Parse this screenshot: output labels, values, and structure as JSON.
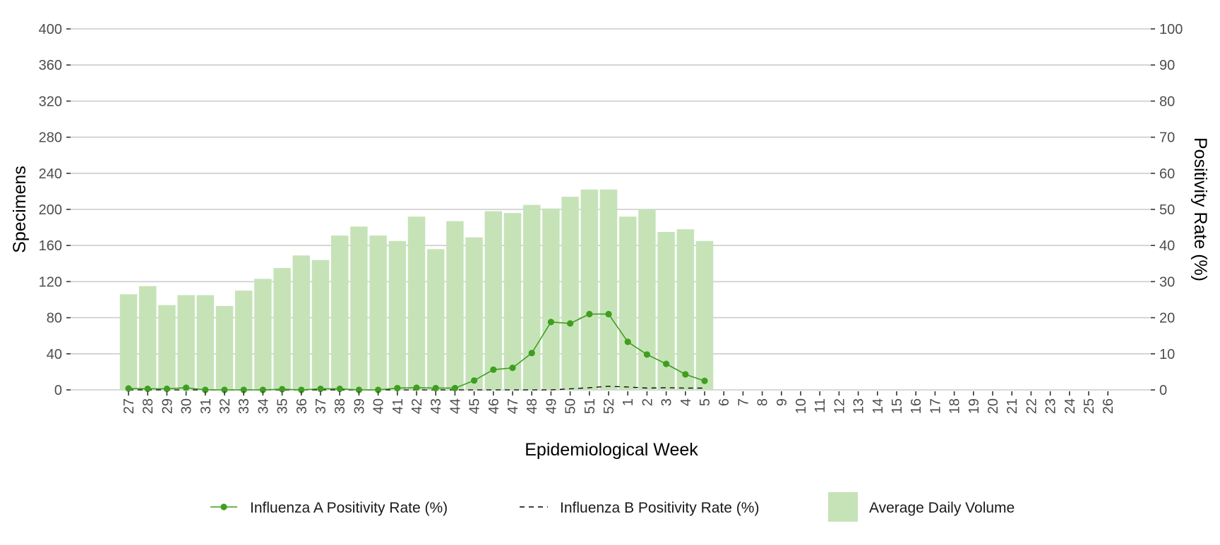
{
  "chart_data": {
    "type": "bar",
    "xlabel": "Epidemiological Week",
    "ylabel": "Specimens",
    "y2label": "Positivity Rate (%)",
    "ylim": [
      0,
      400
    ],
    "y2lim": [
      0,
      100
    ],
    "yticks": [
      0,
      40,
      80,
      120,
      160,
      200,
      240,
      280,
      320,
      360,
      400
    ],
    "y2ticks": [
      0,
      10,
      20,
      30,
      40,
      50,
      60,
      70,
      80,
      90,
      100
    ],
    "grid": true,
    "legend_position": "bottom",
    "categories": [
      "27",
      "28",
      "29",
      "30",
      "31",
      "32",
      "33",
      "34",
      "35",
      "36",
      "37",
      "38",
      "39",
      "40",
      "41",
      "42",
      "43",
      "44",
      "45",
      "46",
      "47",
      "48",
      "49",
      "50",
      "51",
      "52",
      "1",
      "2",
      "3",
      "4",
      "5",
      "6",
      "7",
      "8",
      "9",
      "10",
      "11",
      "12",
      "13",
      "14",
      "15",
      "16",
      "17",
      "18",
      "19",
      "20",
      "21",
      "22",
      "23",
      "24",
      "25",
      "26"
    ],
    "series": [
      {
        "name": "Average Daily Volume",
        "type": "bar",
        "axis": "left",
        "color": "#c6e3b8",
        "values": [
          106,
          115,
          94,
          105,
          105,
          93,
          110,
          123,
          135,
          149,
          144,
          171,
          181,
          171,
          165,
          192,
          156,
          187,
          169,
          198,
          196,
          205,
          201,
          214,
          222,
          222,
          192,
          200,
          175,
          178,
          165,
          null,
          null,
          null,
          null,
          null,
          null,
          null,
          null,
          null,
          null,
          null,
          null,
          null,
          null,
          null,
          null,
          null,
          null,
          null,
          null,
          null
        ]
      },
      {
        "name": "Influenza A Positivity Rate (%)",
        "type": "line",
        "axis": "right",
        "color": "#3f9e1f",
        "values": [
          0.4,
          0.3,
          0.3,
          0.6,
          0.0,
          0.0,
          0.0,
          0.0,
          0.2,
          0.0,
          0.3,
          0.3,
          0.0,
          0.0,
          0.5,
          0.6,
          0.5,
          0.5,
          2.6,
          5.6,
          6.1,
          10.2,
          18.8,
          18.4,
          21.0,
          21.0,
          13.3,
          9.8,
          7.2,
          4.3,
          2.5,
          null,
          null,
          null,
          null,
          null,
          null,
          null,
          null,
          null,
          null,
          null,
          null,
          null,
          null,
          null,
          null,
          null,
          null,
          null,
          null,
          null
        ]
      },
      {
        "name": "Influenza B Positivity Rate (%)",
        "type": "line",
        "dash": true,
        "axis": "right",
        "color": "#000000",
        "values": [
          0,
          0,
          0,
          0,
          0,
          0,
          0,
          0,
          0,
          0,
          0,
          0,
          0,
          0,
          0,
          0,
          0,
          0,
          0,
          0,
          0,
          0,
          0,
          0.3,
          0.6,
          1.0,
          0.8,
          0.5,
          0.6,
          0.5,
          0.5,
          null,
          null,
          null,
          null,
          null,
          null,
          null,
          null,
          null,
          null,
          null,
          null,
          null,
          null,
          null,
          null,
          null,
          null,
          null,
          null,
          null
        ]
      }
    ]
  }
}
